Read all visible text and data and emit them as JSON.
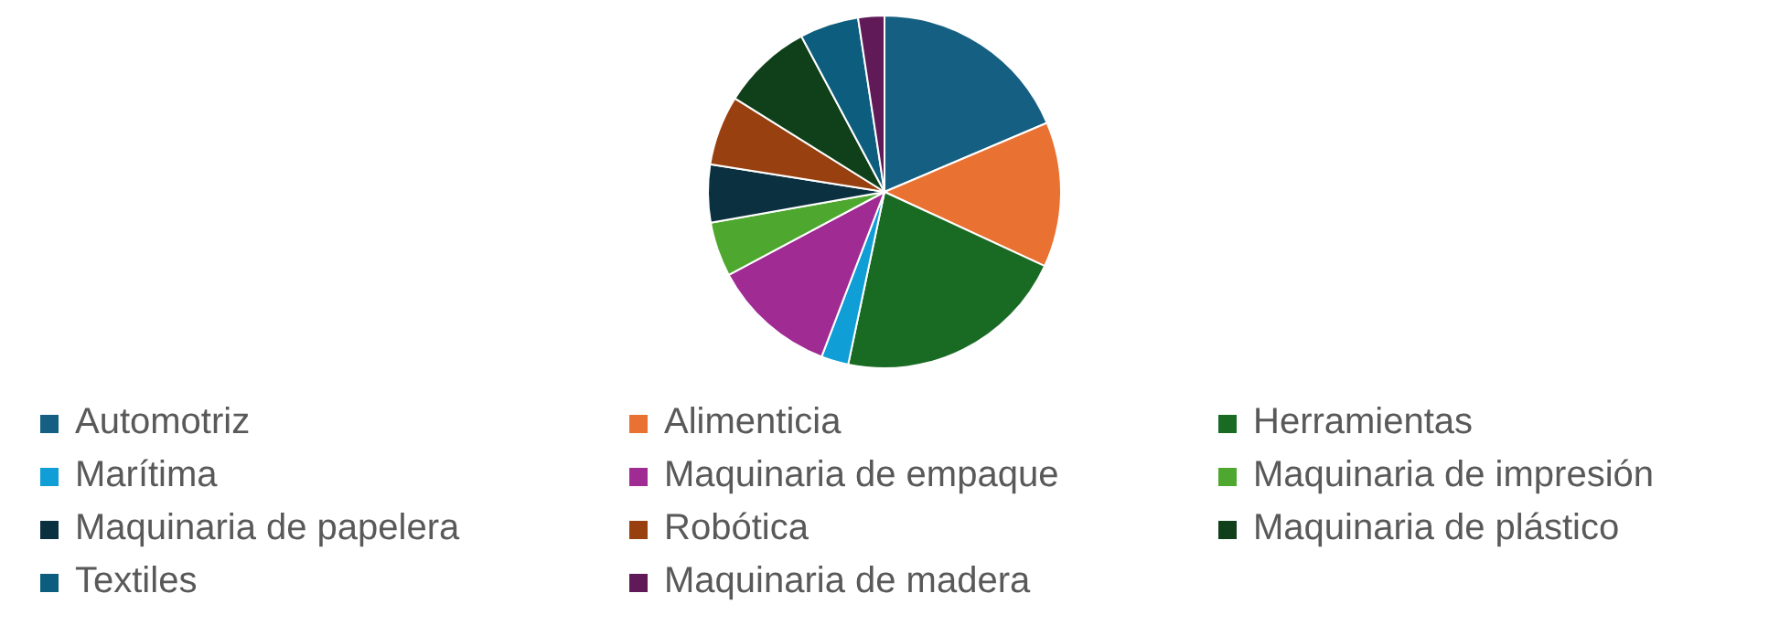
{
  "chart_data": {
    "type": "pie",
    "categories": [
      "Automotriz",
      "Alimenticia",
      "Herramientas",
      "Marítima",
      "Maquinaria de empaque",
      "Maquinaria de impresión",
      "Maquinaria de papelera",
      "Robótica",
      "Maquinaria de plástico",
      "Textiles",
      "Maquinaria de madera"
    ],
    "values": [
      18.6,
      13.3,
      21.4,
      2.5,
      11.4,
      5.0,
      5.3,
      6.4,
      8.3,
      5.4,
      2.4
    ],
    "colors": [
      "#156082",
      "#e97132",
      "#196b24",
      "#0f9ed5",
      "#a02b93",
      "#4ea72e",
      "#0b3040",
      "#994010",
      "#10401a",
      "#0d5e7e",
      "#601a57"
    ],
    "legend": "bottom"
  }
}
